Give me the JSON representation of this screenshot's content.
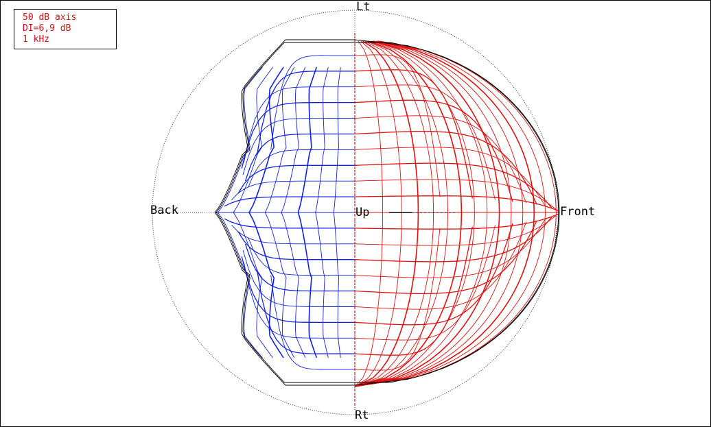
{
  "info": {
    "line1": "50 dB axis",
    "line2": "DI=6,9 dB",
    "line3": "1 kHz"
  },
  "labels": {
    "top": "Lt",
    "bottom": "Rt",
    "left": "Back",
    "right": "Front",
    "center": "Up"
  },
  "colors": {
    "front_mesh": "#e01010",
    "back_mesh": "#1020e0",
    "outline": "#000000",
    "text": "#d01010"
  },
  "chart_data": {
    "type": "balloon-polar-mesh",
    "axis_range_db": 50,
    "directivity_index_db": 6.9,
    "frequency": "1 kHz"
  }
}
